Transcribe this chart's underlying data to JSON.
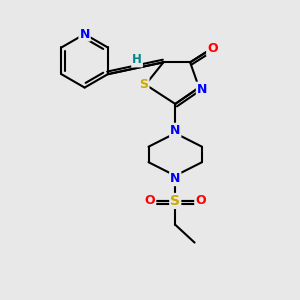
{
  "background_color": "#e8e8e8",
  "atom_colors": {
    "N": "#0000ff",
    "O": "#ff0000",
    "S_thiazole": "#ccaa00",
    "S_sulfonyl": "#ccaa00",
    "C": "#000000",
    "H": "#008888"
  },
  "bond_color": "#000000",
  "bond_width": 1.5,
  "fig_size": [
    3.0,
    3.0
  ],
  "dpi": 100
}
